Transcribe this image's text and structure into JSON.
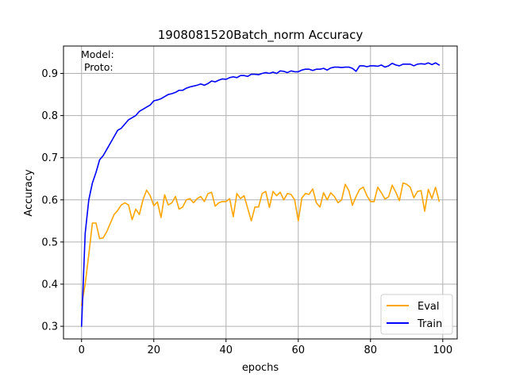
{
  "chart_data": {
    "type": "line",
    "title": "1908081520Batch_norm Accuracy",
    "xlabel": "epochs",
    "ylabel": "Accuracy",
    "xlim": [
      -5,
      104
    ],
    "ylim": [
      0.27,
      0.965
    ],
    "xticks": [
      0,
      20,
      40,
      60,
      80,
      100
    ],
    "yticks": [
      0.3,
      0.4,
      0.5,
      0.6,
      0.7,
      0.8,
      0.9
    ],
    "xtick_labels": [
      "0",
      "20",
      "40",
      "60",
      "80",
      "100"
    ],
    "ytick_labels": [
      "0.3",
      "0.4",
      "0.5",
      "0.6",
      "0.7",
      "0.8",
      "0.9"
    ],
    "grid": true,
    "legend_position": "lower-right",
    "annotations": [
      "Model:",
      " Proto:"
    ],
    "series": [
      {
        "name": "Eval",
        "color": "#ffa500",
        "x": [
          0,
          1,
          2,
          3,
          4,
          5,
          6,
          7,
          8,
          9,
          10,
          11,
          12,
          13,
          14,
          15,
          16,
          17,
          18,
          19,
          20,
          21,
          22,
          23,
          24,
          25,
          26,
          27,
          28,
          29,
          30,
          31,
          32,
          33,
          34,
          35,
          36,
          37,
          38,
          39,
          40,
          41,
          42,
          43,
          44,
          45,
          46,
          47,
          48,
          49,
          50,
          51,
          52,
          53,
          54,
          55,
          56,
          57,
          58,
          59,
          60,
          61,
          62,
          63,
          64,
          65,
          66,
          67,
          68,
          69,
          70,
          71,
          72,
          73,
          74,
          75,
          76,
          77,
          78,
          79,
          80,
          81,
          82,
          83,
          84,
          85,
          86,
          87,
          88,
          89,
          90,
          91,
          92,
          93,
          94,
          95,
          96,
          97,
          98,
          99
        ],
        "values": [
          0.35,
          0.4,
          0.47,
          0.545,
          0.545,
          0.508,
          0.51,
          0.525,
          0.545,
          0.565,
          0.575,
          0.588,
          0.593,
          0.588,
          0.553,
          0.578,
          0.565,
          0.6,
          0.623,
          0.61,
          0.586,
          0.595,
          0.558,
          0.612,
          0.588,
          0.593,
          0.608,
          0.578,
          0.583,
          0.6,
          0.603,
          0.593,
          0.603,
          0.608,
          0.596,
          0.615,
          0.618,
          0.585,
          0.593,
          0.596,
          0.596,
          0.603,
          0.56,
          0.615,
          0.603,
          0.61,
          0.58,
          0.55,
          0.583,
          0.583,
          0.615,
          0.62,
          0.582,
          0.62,
          0.61,
          0.618,
          0.6,
          0.615,
          0.613,
          0.6,
          0.55,
          0.605,
          0.615,
          0.613,
          0.626,
          0.593,
          0.583,
          0.617,
          0.6,
          0.617,
          0.608,
          0.593,
          0.6,
          0.637,
          0.622,
          0.587,
          0.608,
          0.625,
          0.63,
          0.61,
          0.596,
          0.596,
          0.63,
          0.617,
          0.602,
          0.607,
          0.635,
          0.618,
          0.598,
          0.64,
          0.637,
          0.63,
          0.605,
          0.62,
          0.622,
          0.573,
          0.625,
          0.603,
          0.63,
          0.597
        ]
      },
      {
        "name": "Train",
        "color": "#0000ff",
        "x": [
          0,
          1,
          2,
          3,
          4,
          5,
          6,
          7,
          8,
          9,
          10,
          11,
          12,
          13,
          14,
          15,
          16,
          17,
          18,
          19,
          20,
          21,
          22,
          23,
          24,
          25,
          26,
          27,
          28,
          29,
          30,
          31,
          32,
          33,
          34,
          35,
          36,
          37,
          38,
          39,
          40,
          41,
          42,
          43,
          44,
          45,
          46,
          47,
          48,
          49,
          50,
          51,
          52,
          53,
          54,
          55,
          56,
          57,
          58,
          59,
          60,
          61,
          62,
          63,
          64,
          65,
          66,
          67,
          68,
          69,
          70,
          71,
          72,
          73,
          74,
          75,
          76,
          77,
          78,
          79,
          80,
          81,
          82,
          83,
          84,
          85,
          86,
          87,
          88,
          89,
          90,
          91,
          92,
          93,
          94,
          95,
          96,
          97,
          98,
          99
        ],
        "values": [
          0.3,
          0.52,
          0.6,
          0.64,
          0.665,
          0.695,
          0.705,
          0.72,
          0.735,
          0.75,
          0.765,
          0.77,
          0.78,
          0.79,
          0.795,
          0.8,
          0.81,
          0.815,
          0.82,
          0.825,
          0.835,
          0.837,
          0.84,
          0.845,
          0.85,
          0.852,
          0.855,
          0.86,
          0.86,
          0.865,
          0.868,
          0.87,
          0.872,
          0.875,
          0.872,
          0.876,
          0.882,
          0.88,
          0.884,
          0.887,
          0.886,
          0.89,
          0.892,
          0.89,
          0.895,
          0.895,
          0.893,
          0.898,
          0.898,
          0.897,
          0.9,
          0.902,
          0.9,
          0.903,
          0.9,
          0.906,
          0.905,
          0.902,
          0.906,
          0.904,
          0.904,
          0.908,
          0.91,
          0.91,
          0.907,
          0.91,
          0.91,
          0.912,
          0.908,
          0.913,
          0.915,
          0.915,
          0.914,
          0.915,
          0.915,
          0.912,
          0.905,
          0.918,
          0.918,
          0.916,
          0.918,
          0.918,
          0.917,
          0.92,
          0.915,
          0.918,
          0.924,
          0.92,
          0.918,
          0.922,
          0.922,
          0.922,
          0.918,
          0.922,
          0.923,
          0.922,
          0.925,
          0.921,
          0.925,
          0.92
        ]
      }
    ]
  }
}
